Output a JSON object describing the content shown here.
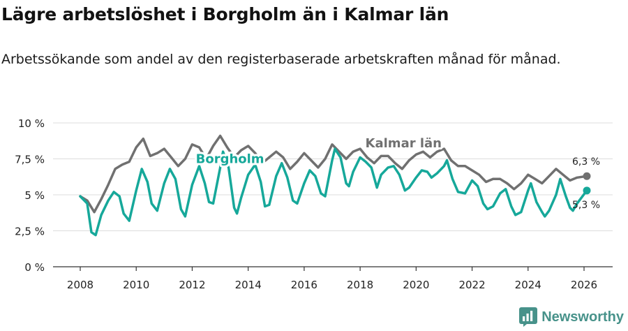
{
  "header": {
    "title": "Lägre arbetslöshet i Borgholm än i Kalmar län",
    "subtitle": "Arbetssökande som andel av den registerbaserade arbetskraften månad för månad."
  },
  "brand": {
    "name": "Newsworthy",
    "logo_icon": "newsworthy-logo-icon",
    "color": "#47928a"
  },
  "chart_data": {
    "type": "line",
    "title": "Lägre arbetslöshet i Borgholm än i Kalmar län",
    "xlabel": "",
    "ylabel": "",
    "x_range": [
      2008,
      2026
    ],
    "ylim": [
      0,
      10
    ],
    "grid": true,
    "x_ticks": [
      2008,
      2010,
      2012,
      2014,
      2016,
      2018,
      2020,
      2022,
      2024,
      2026
    ],
    "x_tick_labels": [
      "2008",
      "2010",
      "2012",
      "2014",
      "2016",
      "2018",
      "2020",
      "2022",
      "2024",
      "2026"
    ],
    "y_ticks": [
      0,
      2.5,
      5,
      7.5,
      10
    ],
    "y_tick_labels": [
      "0 %",
      "2,5 %",
      "5 %",
      "7,5 %",
      "10 %"
    ],
    "series": [
      {
        "name": "Kalmar län",
        "label": "Kalmar län",
        "color": "#707070",
        "end_label": "6,3 %",
        "end_value": 6.3,
        "end_date": 2026.1,
        "points": [
          [
            2008.0,
            4.9
          ],
          [
            2008.25,
            4.6
          ],
          [
            2008.5,
            3.8
          ],
          [
            2008.75,
            4.7
          ],
          [
            2009.0,
            5.7
          ],
          [
            2009.25,
            6.8
          ],
          [
            2009.5,
            7.1
          ],
          [
            2009.75,
            7.3
          ],
          [
            2010.0,
            8.3
          ],
          [
            2010.25,
            8.9
          ],
          [
            2010.5,
            7.7
          ],
          [
            2010.75,
            7.9
          ],
          [
            2011.0,
            8.2
          ],
          [
            2011.25,
            7.6
          ],
          [
            2011.5,
            7.0
          ],
          [
            2011.75,
            7.5
          ],
          [
            2012.0,
            8.5
          ],
          [
            2012.25,
            8.3
          ],
          [
            2012.5,
            7.5
          ],
          [
            2012.75,
            8.4
          ],
          [
            2013.0,
            9.1
          ],
          [
            2013.25,
            8.3
          ],
          [
            2013.5,
            7.6
          ],
          [
            2013.75,
            8.1
          ],
          [
            2014.0,
            8.4
          ],
          [
            2014.25,
            7.9
          ],
          [
            2014.5,
            7.2
          ],
          [
            2014.75,
            7.6
          ],
          [
            2015.0,
            8.0
          ],
          [
            2015.25,
            7.6
          ],
          [
            2015.5,
            6.8
          ],
          [
            2015.75,
            7.3
          ],
          [
            2016.0,
            7.9
          ],
          [
            2016.25,
            7.4
          ],
          [
            2016.5,
            6.9
          ],
          [
            2016.75,
            7.5
          ],
          [
            2017.0,
            8.5
          ],
          [
            2017.25,
            8.0
          ],
          [
            2017.5,
            7.5
          ],
          [
            2017.75,
            8.0
          ],
          [
            2018.0,
            8.2
          ],
          [
            2018.25,
            7.6
          ],
          [
            2018.5,
            7.2
          ],
          [
            2018.75,
            7.7
          ],
          [
            2019.0,
            7.7
          ],
          [
            2019.25,
            7.2
          ],
          [
            2019.5,
            6.8
          ],
          [
            2019.75,
            7.4
          ],
          [
            2020.0,
            7.8
          ],
          [
            2020.25,
            8.0
          ],
          [
            2020.5,
            7.6
          ],
          [
            2020.75,
            8.0
          ],
          [
            2021.0,
            8.2
          ],
          [
            2021.25,
            7.4
          ],
          [
            2021.5,
            7.0
          ],
          [
            2021.75,
            7.0
          ],
          [
            2022.0,
            6.7
          ],
          [
            2022.25,
            6.4
          ],
          [
            2022.5,
            5.9
          ],
          [
            2022.75,
            6.1
          ],
          [
            2023.0,
            6.1
          ],
          [
            2023.25,
            5.8
          ],
          [
            2023.5,
            5.4
          ],
          [
            2023.75,
            5.8
          ],
          [
            2024.0,
            6.4
          ],
          [
            2024.25,
            6.1
          ],
          [
            2024.5,
            5.8
          ],
          [
            2024.75,
            6.3
          ],
          [
            2025.0,
            6.8
          ],
          [
            2025.25,
            6.4
          ],
          [
            2025.5,
            6.0
          ],
          [
            2025.75,
            6.2
          ],
          [
            2026.1,
            6.3
          ]
        ]
      },
      {
        "name": "Borgholm",
        "label": "Borgholm",
        "color": "#16a89a",
        "end_label": "5,3 %",
        "end_value": 5.3,
        "end_date": 2026.1,
        "points": [
          [
            2008.0,
            4.9
          ],
          [
            2008.25,
            4.4
          ],
          [
            2008.4,
            2.4
          ],
          [
            2008.55,
            2.2
          ],
          [
            2008.75,
            3.6
          ],
          [
            2009.0,
            4.6
          ],
          [
            2009.2,
            5.2
          ],
          [
            2009.4,
            4.9
          ],
          [
            2009.55,
            3.7
          ],
          [
            2009.75,
            3.2
          ],
          [
            2010.0,
            5.3
          ],
          [
            2010.2,
            6.8
          ],
          [
            2010.4,
            5.9
          ],
          [
            2010.55,
            4.4
          ],
          [
            2010.75,
            3.9
          ],
          [
            2011.0,
            5.8
          ],
          [
            2011.2,
            6.8
          ],
          [
            2011.4,
            6.1
          ],
          [
            2011.6,
            4.0
          ],
          [
            2011.75,
            3.5
          ],
          [
            2012.0,
            5.7
          ],
          [
            2012.25,
            7.0
          ],
          [
            2012.45,
            5.8
          ],
          [
            2012.6,
            4.5
          ],
          [
            2012.75,
            4.4
          ],
          [
            2013.0,
            6.9
          ],
          [
            2013.1,
            8.0
          ],
          [
            2013.3,
            6.9
          ],
          [
            2013.5,
            4.1
          ],
          [
            2013.6,
            3.7
          ],
          [
            2013.75,
            4.8
          ],
          [
            2014.0,
            6.4
          ],
          [
            2014.25,
            7.1
          ],
          [
            2014.45,
            5.9
          ],
          [
            2014.6,
            4.2
          ],
          [
            2014.75,
            4.3
          ],
          [
            2015.0,
            6.3
          ],
          [
            2015.2,
            7.2
          ],
          [
            2015.4,
            6.2
          ],
          [
            2015.6,
            4.6
          ],
          [
            2015.75,
            4.4
          ],
          [
            2016.0,
            5.8
          ],
          [
            2016.2,
            6.7
          ],
          [
            2016.4,
            6.3
          ],
          [
            2016.6,
            5.1
          ],
          [
            2016.75,
            4.9
          ],
          [
            2017.0,
            7.4
          ],
          [
            2017.1,
            8.2
          ],
          [
            2017.3,
            7.6
          ],
          [
            2017.5,
            5.8
          ],
          [
            2017.6,
            5.6
          ],
          [
            2017.75,
            6.6
          ],
          [
            2018.0,
            7.6
          ],
          [
            2018.2,
            7.3
          ],
          [
            2018.4,
            6.9
          ],
          [
            2018.6,
            5.5
          ],
          [
            2018.75,
            6.4
          ],
          [
            2019.0,
            6.9
          ],
          [
            2019.2,
            7.0
          ],
          [
            2019.4,
            6.4
          ],
          [
            2019.6,
            5.3
          ],
          [
            2019.75,
            5.5
          ],
          [
            2020.0,
            6.2
          ],
          [
            2020.2,
            6.7
          ],
          [
            2020.4,
            6.6
          ],
          [
            2020.55,
            6.2
          ],
          [
            2020.75,
            6.5
          ],
          [
            2021.0,
            7.0
          ],
          [
            2021.1,
            7.4
          ],
          [
            2021.3,
            6.1
          ],
          [
            2021.5,
            5.2
          ],
          [
            2021.75,
            5.1
          ],
          [
            2022.0,
            6.0
          ],
          [
            2022.2,
            5.6
          ],
          [
            2022.4,
            4.4
          ],
          [
            2022.55,
            4.0
          ],
          [
            2022.75,
            4.2
          ],
          [
            2023.0,
            5.1
          ],
          [
            2023.2,
            5.4
          ],
          [
            2023.4,
            4.2
          ],
          [
            2023.55,
            3.6
          ],
          [
            2023.75,
            3.8
          ],
          [
            2024.0,
            5.3
          ],
          [
            2024.1,
            5.8
          ],
          [
            2024.3,
            4.5
          ],
          [
            2024.5,
            3.8
          ],
          [
            2024.6,
            3.5
          ],
          [
            2024.75,
            3.9
          ],
          [
            2025.0,
            5.0
          ],
          [
            2025.15,
            6.1
          ],
          [
            2025.35,
            4.9
          ],
          [
            2025.5,
            4.1
          ],
          [
            2025.6,
            3.9
          ],
          [
            2025.75,
            4.4
          ],
          [
            2026.1,
            5.3
          ]
        ]
      }
    ]
  }
}
